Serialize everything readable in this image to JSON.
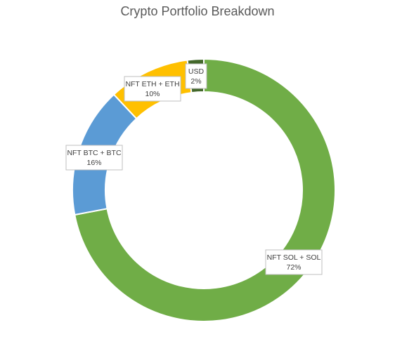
{
  "chart_data": {
    "type": "pie",
    "title": "Crypto Portfolio Breakdown",
    "hole": "doughnut",
    "slices": [
      {
        "label": "NFT SOL + SOL",
        "percent_label": "72%",
        "value": 72,
        "color": "#70ad47"
      },
      {
        "label": "NFT BTC + BTC",
        "percent_label": "16%",
        "value": 16,
        "color": "#5b9bd5"
      },
      {
        "label": "NFT ETH + ETH",
        "percent_label": "10%",
        "value": 10,
        "color": "#ffc000"
      },
      {
        "label": "USD",
        "percent_label": "2%",
        "value": 2,
        "color": "#43682b"
      }
    ],
    "legend": "none"
  }
}
